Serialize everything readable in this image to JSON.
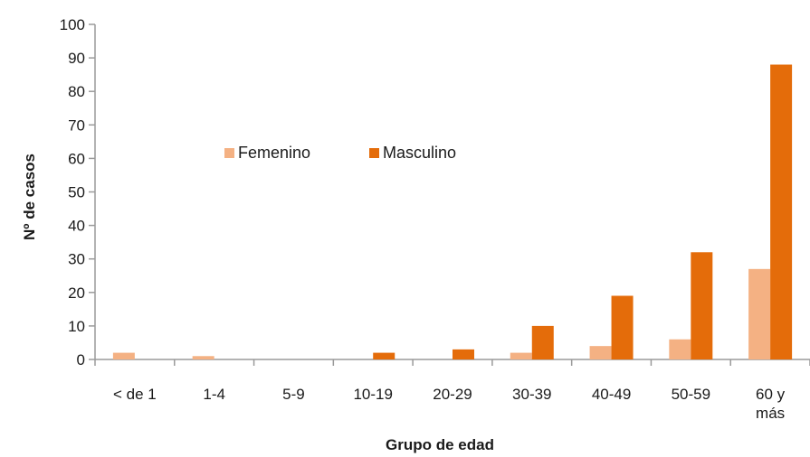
{
  "chart_data": {
    "type": "bar",
    "categories": [
      "< de 1",
      "1-4",
      "5-9",
      "10-19",
      "20-29",
      "30-39",
      "40-49",
      "50-59",
      "60 y más"
    ],
    "category_lines": [
      [
        "< de 1"
      ],
      [
        "1-4"
      ],
      [
        "5-9"
      ],
      [
        "10-19"
      ],
      [
        "20-29"
      ],
      [
        "30-39"
      ],
      [
        "40-49"
      ],
      [
        "50-59"
      ],
      [
        "60 y",
        "más"
      ]
    ],
    "series": [
      {
        "name": "Femenino",
        "color": "#f4b183",
        "values": [
          2,
          1,
          0,
          0,
          0,
          2,
          4,
          6,
          27
        ]
      },
      {
        "name": "Masculino",
        "color": "#e46c0a",
        "values": [
          0,
          0,
          0,
          2,
          3,
          10,
          19,
          32,
          88
        ]
      }
    ],
    "xlabel": "Grupo de edad",
    "ylabel": "Nº de casos",
    "ylim": [
      0,
      100
    ],
    "yticks": [
      0,
      10,
      20,
      30,
      40,
      50,
      60,
      70,
      80,
      90,
      100
    ],
    "grid": false,
    "legend_position": "upper-left inside plot"
  }
}
